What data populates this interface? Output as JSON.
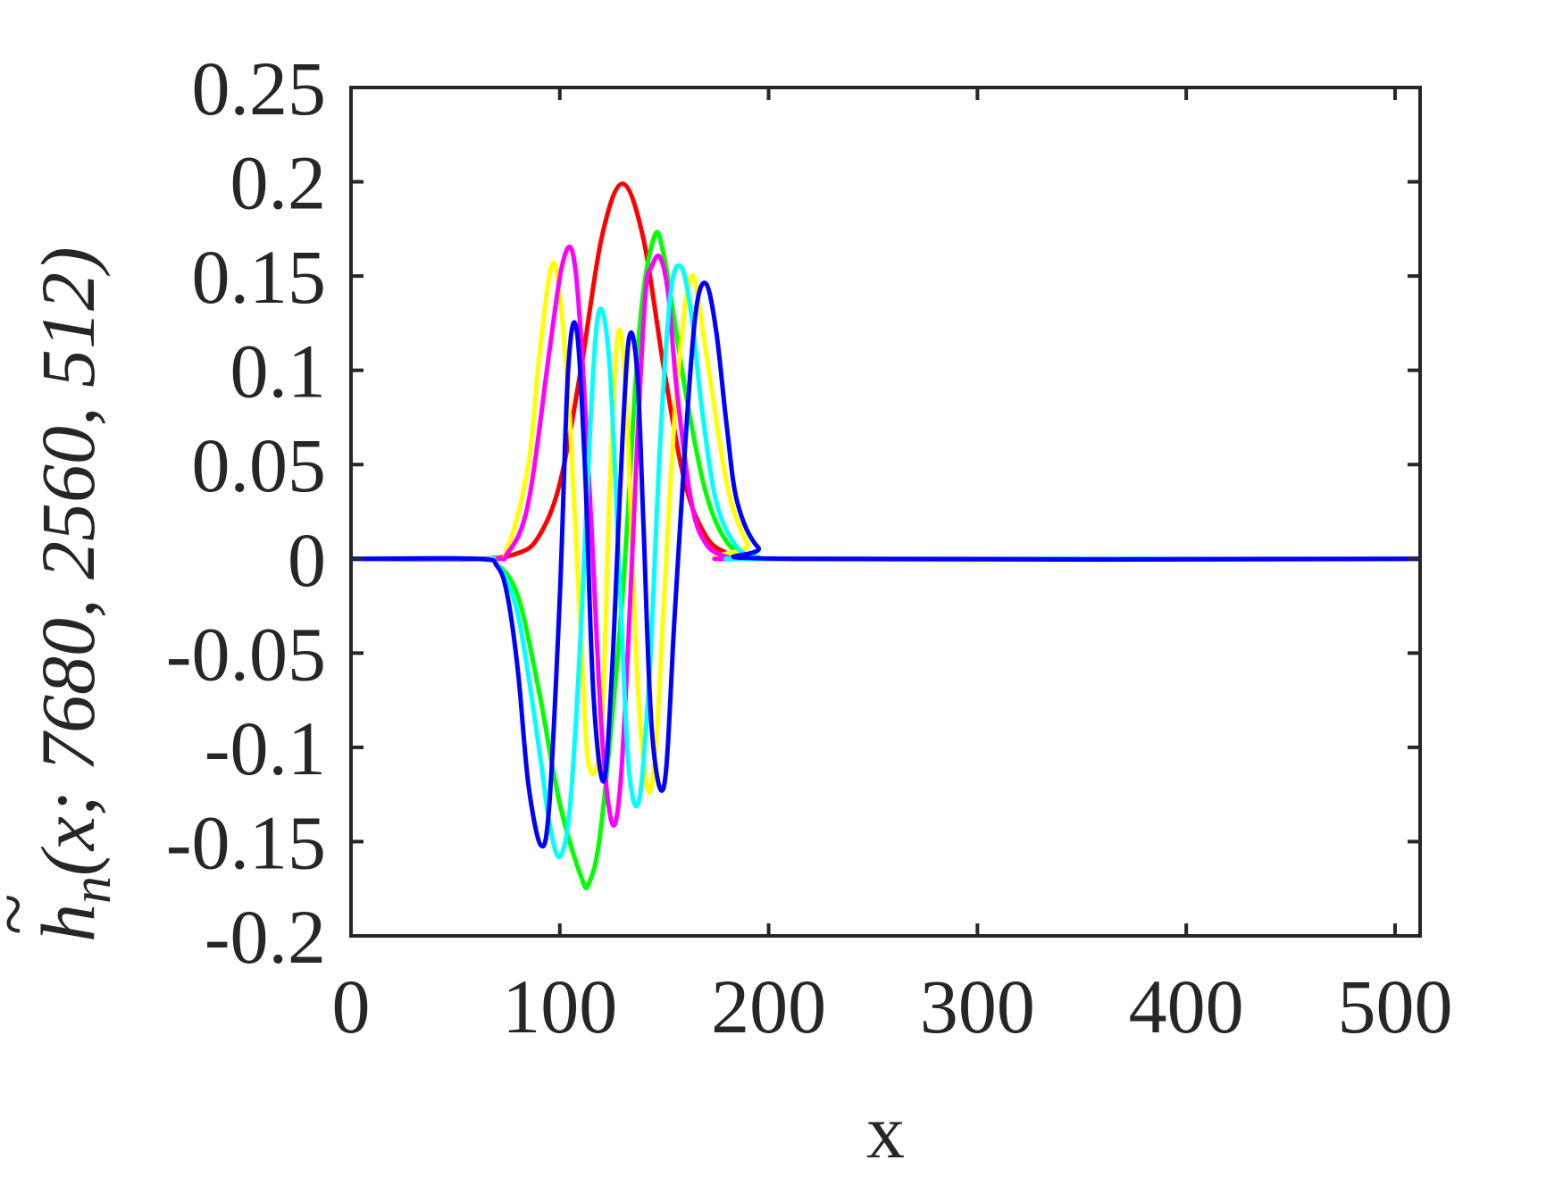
{
  "chart_data": {
    "type": "line",
    "title": "",
    "xlabel": "x",
    "ylabel_parts": {
      "main": "h",
      "accent": "~",
      "subscript": "n",
      "args": "(x; 7680, 2560, 512)"
    },
    "xlim": [
      0,
      512
    ],
    "ylim": [
      -0.2,
      0.25
    ],
    "xticks": [
      0,
      100,
      200,
      300,
      400,
      500
    ],
    "xtick_labels": [
      "0",
      "100",
      "200",
      "300",
      "400",
      "500"
    ],
    "yticks": [
      0.25,
      0.2,
      0.15,
      0.1,
      0.05,
      0,
      -0.05,
      -0.1,
      -0.15,
      -0.2
    ],
    "ytick_labels": [
      "0.25",
      "0.2",
      "0.15",
      "0.1",
      "0.05",
      "0",
      "-0.05",
      "-0.1",
      "-0.15",
      "-0.2"
    ],
    "grid": false,
    "legend": "none",
    "series": [
      {
        "color": "#ff0000",
        "x": [
          0,
          60,
          80,
          90,
          100,
          110,
          120,
          130,
          140,
          150,
          160,
          170,
          180,
          190,
          200,
          512
        ],
        "y": [
          0,
          0,
          0.003,
          0.012,
          0.04,
          0.1,
          0.17,
          0.199,
          0.17,
          0.1,
          0.04,
          0.012,
          0.003,
          0.0005,
          0,
          0
        ]
      },
      {
        "color": "#00ff00",
        "x": [
          0,
          60,
          70,
          80,
          90,
          100,
          110,
          114,
          120,
          130,
          138,
          145,
          150,
          160,
          170,
          180,
          190,
          200,
          512
        ],
        "y": [
          0,
          0,
          -0.003,
          -0.02,
          -0.07,
          -0.13,
          -0.168,
          -0.172,
          -0.14,
          -0.02,
          0.12,
          0.17,
          0.16,
          0.09,
          0.035,
          0.009,
          0.002,
          0,
          0
        ]
      },
      {
        "color": "#ffff00",
        "x": [
          0,
          65,
          75,
          85,
          90,
          96,
          100,
          105,
          110,
          114,
          120,
          124,
          128,
          132,
          137,
          142,
          146,
          150,
          156,
          163,
          170,
          180,
          190,
          200,
          512
        ],
        "y": [
          0,
          0.0,
          0.006,
          0.05,
          0.105,
          0.155,
          0.14,
          0.07,
          -0.04,
          -0.11,
          -0.09,
          0.04,
          0.12,
          0.08,
          -0.06,
          -0.122,
          -0.1,
          -0.02,
          0.09,
          0.15,
          0.11,
          0.04,
          0.008,
          0,
          0
        ]
      },
      {
        "color": "#ff00ff",
        "x": [
          0,
          65,
          75,
          85,
          95,
          101,
          106,
          110,
          115,
          120,
          125,
          129,
          133,
          137,
          141,
          144,
          148,
          152,
          156,
          163,
          170,
          180,
          190,
          200,
          512
        ],
        "y": [
          0,
          0.0,
          0.003,
          0.03,
          0.11,
          0.155,
          0.163,
          0.12,
          0.02,
          -0.09,
          -0.14,
          -0.12,
          -0.04,
          0.06,
          0.14,
          0.155,
          0.16,
          0.14,
          0.09,
          0.03,
          0.008,
          0.001,
          0,
          0,
          0
        ]
      },
      {
        "color": "#00ffff",
        "x": [
          0,
          60,
          70,
          80,
          90,
          95,
          100,
          105,
          110,
          115,
          119,
          124,
          129,
          133,
          138,
          143,
          148,
          153,
          158,
          163,
          168,
          175,
          185,
          195,
          205,
          512
        ],
        "y": [
          0,
          0,
          -0.003,
          -0.03,
          -0.1,
          -0.14,
          -0.158,
          -0.13,
          -0.04,
          0.08,
          0.132,
          0.1,
          -0.02,
          -0.11,
          -0.128,
          -0.06,
          0.06,
          0.14,
          0.155,
          0.13,
          0.08,
          0.03,
          0.006,
          0.001,
          0,
          0
        ]
      },
      {
        "color": "#0000ff",
        "x": [
          0,
          60,
          70,
          75,
          80,
          85,
          91,
          95,
          100,
          104,
          108,
          112,
          116,
          121,
          125,
          129,
          133,
          137,
          140,
          144,
          150,
          155,
          160,
          165,
          170,
          175,
          180,
          185,
          195,
          210,
          512
        ],
        "y": [
          0,
          0,
          -0.004,
          -0.02,
          -0.06,
          -0.12,
          -0.152,
          -0.13,
          -0.02,
          0.1,
          0.122,
          0.05,
          -0.07,
          -0.118,
          -0.06,
          0.04,
          0.116,
          0.1,
          0.02,
          -0.09,
          -0.12,
          -0.03,
          0.06,
          0.13,
          0.146,
          0.12,
          0.07,
          0.03,
          0.006,
          0,
          0
        ]
      }
    ]
  }
}
